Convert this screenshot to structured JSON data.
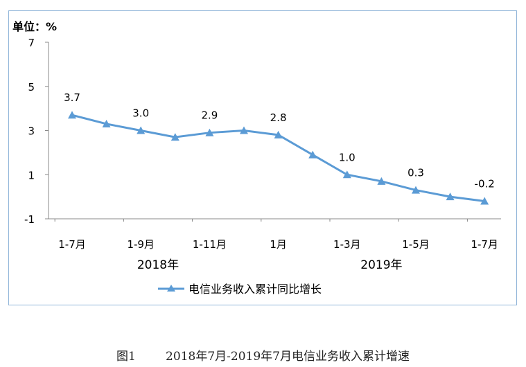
{
  "chart_data": {
    "type": "line",
    "unit_label": "单位：%",
    "categories": [
      "1-7月",
      "",
      "1-9月",
      "",
      "1-11月",
      "",
      "1月",
      "",
      "1-3月",
      "",
      "1-5月",
      "",
      "1-7月"
    ],
    "year_groups": [
      {
        "label": "2018年",
        "from": 0,
        "to": 5
      },
      {
        "label": "2019年",
        "from": 6,
        "to": 12
      }
    ],
    "series": [
      {
        "name": "电信业务收入累计同比增长",
        "values": [
          3.7,
          3.3,
          3.0,
          2.7,
          2.9,
          3.0,
          2.8,
          1.9,
          1.0,
          0.7,
          0.3,
          0.0,
          -0.2
        ],
        "data_labels": [
          "3.7",
          "",
          "3.0",
          "",
          "2.9",
          "",
          "2.8",
          "",
          "1.0",
          "",
          "0.3",
          "",
          "-0.2"
        ],
        "color": "#5b9bd5"
      }
    ],
    "ylim": [
      -1,
      7
    ],
    "yticks": [
      -1,
      1,
      3,
      5,
      7
    ],
    "grid": false,
    "legend": "bottom",
    "caption": "图1        2018年7月-2019年7月电信业务收入累计增速"
  }
}
